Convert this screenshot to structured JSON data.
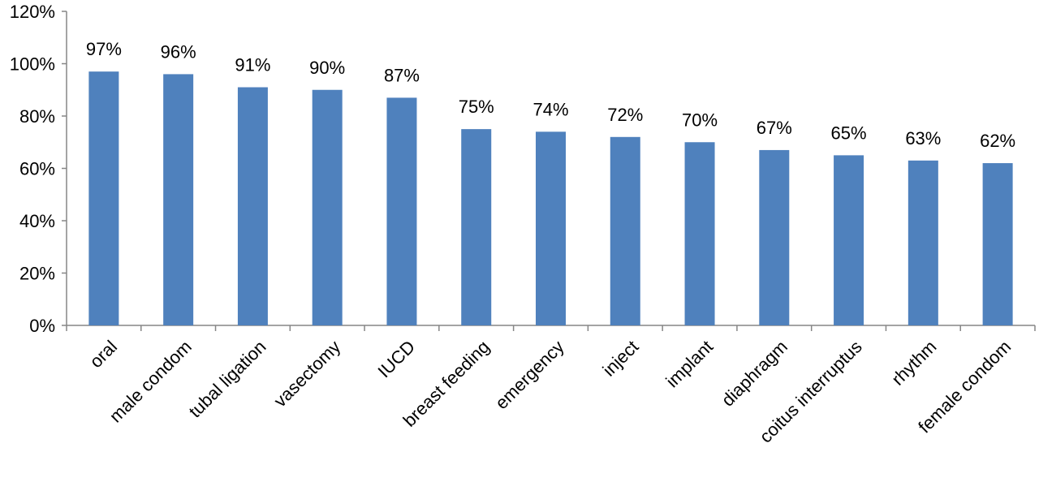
{
  "chart_data": {
    "type": "bar",
    "categories": [
      "oral",
      "male condom",
      "tubal ligation",
      "vasectomy",
      "IUCD",
      "breast feeding",
      "emergency",
      "inject",
      "implant",
      "diaphragm",
      "coitus interruptus",
      "rhythm",
      "female condom"
    ],
    "values": [
      97,
      96,
      91,
      90,
      87,
      75,
      74,
      72,
      70,
      67,
      65,
      63,
      62
    ],
    "value_labels": [
      "97%",
      "96%",
      "91%",
      "90%",
      "87%",
      "75%",
      "74%",
      "72%",
      "70%",
      "67%",
      "65%",
      "63%",
      "62%"
    ],
    "color": "#4f81bd",
    "ylim": [
      0,
      120
    ],
    "yticks": [
      {
        "value": 0,
        "label": "0%"
      },
      {
        "value": 20,
        "label": "20%"
      },
      {
        "value": 40,
        "label": "40%"
      },
      {
        "value": 60,
        "label": "60%"
      },
      {
        "value": 80,
        "label": "80%"
      },
      {
        "value": 100,
        "label": "100%"
      },
      {
        "value": 120,
        "label": "120%"
      }
    ],
    "grid": false
  }
}
